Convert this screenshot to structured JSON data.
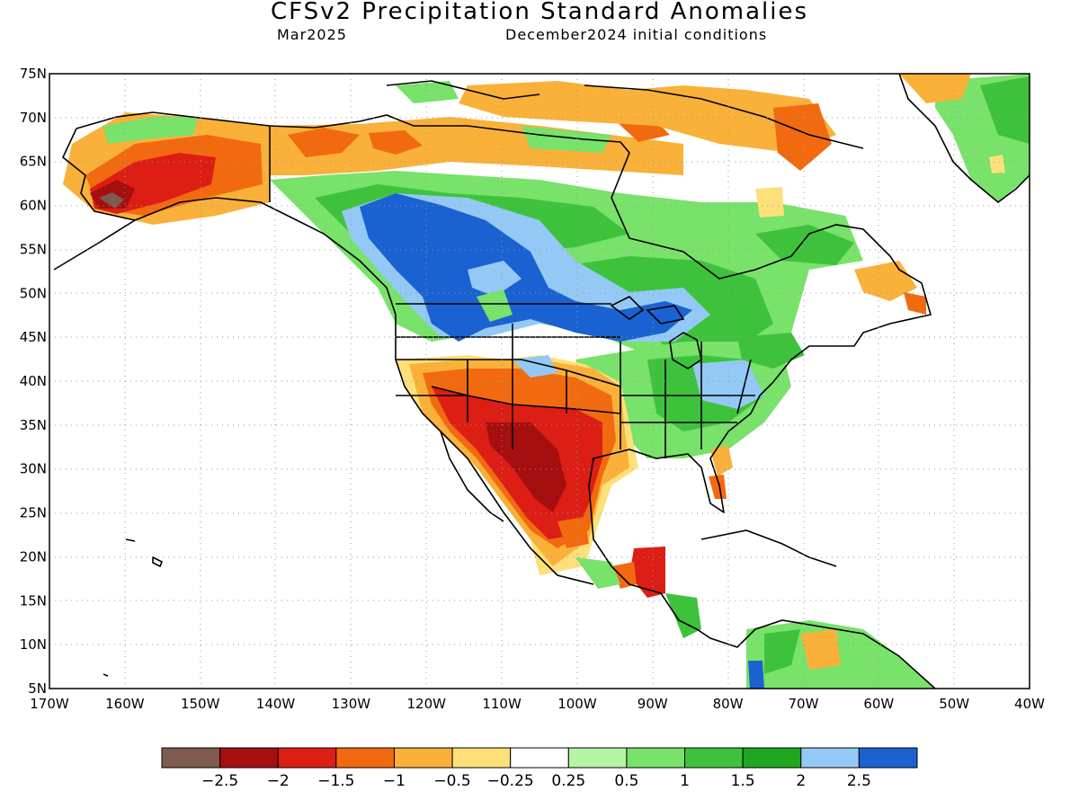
{
  "title": "CFSv2 Precipitation Standard Anomalies",
  "valid_period": "Mar2025",
  "initial_conditions": "December2024 initial conditions",
  "axes": {
    "lat_labels": [
      "75N",
      "70N",
      "65N",
      "60N",
      "55N",
      "50N",
      "45N",
      "40N",
      "35N",
      "30N",
      "25N",
      "20N",
      "15N",
      "10N",
      "5N"
    ],
    "lon_labels": [
      "170W",
      "160W",
      "150W",
      "140W",
      "130W",
      "120W",
      "110W",
      "100W",
      "90W",
      "80W",
      "70W",
      "60W",
      "50W",
      "40W"
    ],
    "lat_range": [
      5,
      75
    ],
    "lon_range": [
      -170,
      -40
    ],
    "grid": "dotted"
  },
  "colorbar": {
    "colors": [
      "#7f5a4f",
      "#a50f0f",
      "#dc1e14",
      "#f26a10",
      "#f9b13a",
      "#fde07a",
      "#ffffff",
      "#b4f5a6",
      "#78e26a",
      "#3ec23c",
      "#1fa81f",
      "#93c9f4",
      "#1a62d1"
    ],
    "labels": [
      "−2.5",
      "−2",
      "−1.5",
      "−1",
      "−0.5",
      "−0.25",
      "0.25",
      "0.5",
      "1",
      "1.5",
      "2",
      "2.5"
    ]
  },
  "colors": {
    "coastline": "#000000",
    "frame": "#000000"
  }
}
